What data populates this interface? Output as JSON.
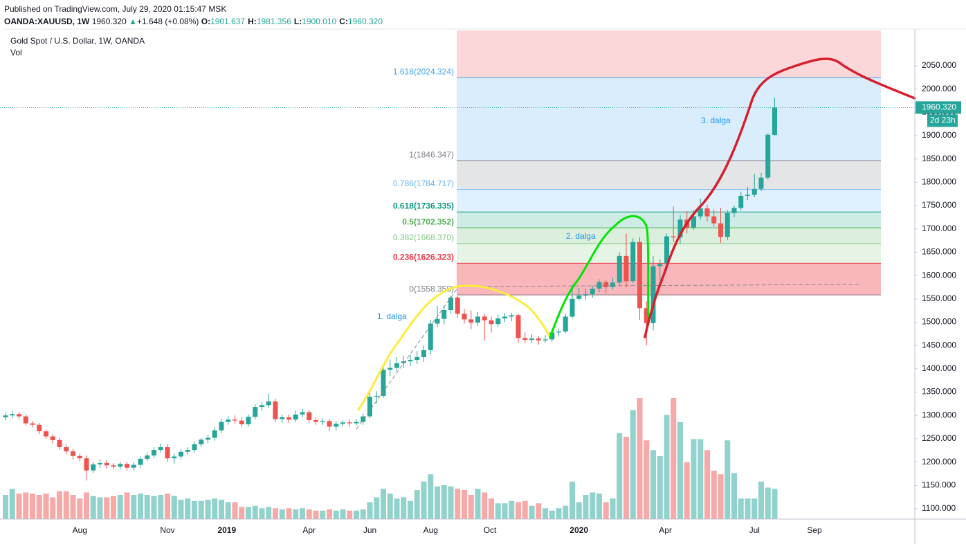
{
  "header": {
    "published": "Published on TradingView.com, July 29, 2020 01:15:47 MSK",
    "symbol": "OANDA:XAUUSD, 1W",
    "last": "1960.320",
    "arrow": "▲",
    "change": "+1.648 (+0.08%)",
    "fields": [
      {
        "k": "O:",
        "v": "1901.637"
      },
      {
        "k": "H:",
        "v": "1981.356"
      },
      {
        "k": "L:",
        "v": "1900.010"
      },
      {
        "k": "C:",
        "v": "1960.320"
      }
    ]
  },
  "chart_data": {
    "type": "candlestick",
    "title": "Gold Spot / U.S. Dollar, 1W, OANDA",
    "volume_label": "Vol",
    "up_color": "#26a69a",
    "down_color": "#ef5350",
    "grid": true,
    "categories": [
      null,
      null,
      null,
      null,
      null,
      null,
      null,
      null,
      null,
      null,
      null,
      null,
      null,
      null,
      null,
      null,
      null,
      null,
      null,
      null,
      null,
      null,
      null,
      null,
      null,
      null,
      null,
      null,
      null,
      null,
      null,
      null,
      null,
      null,
      null,
      null,
      null,
      null,
      null,
      null,
      null,
      null,
      null,
      null,
      null,
      null,
      null,
      null,
      null,
      null,
      null,
      null,
      null,
      null,
      null,
      null,
      null,
      null,
      null,
      null,
      null,
      null,
      null,
      null,
      null,
      null,
      null,
      null,
      null,
      null,
      null,
      null,
      null,
      null,
      null,
      null,
      null,
      null,
      null,
      null,
      null,
      null,
      null,
      null,
      null,
      null,
      null,
      null,
      null,
      null,
      null,
      null,
      null,
      null,
      null,
      null,
      null,
      null,
      null,
      null,
      null,
      null,
      null,
      null,
      null,
      null,
      null,
      null,
      null,
      null,
      null,
      null,
      null,
      null,
      null
    ],
    "ohlc": [
      [
        1296,
        1306,
        1290,
        1300
      ],
      [
        1300,
        1310,
        1294,
        1303
      ],
      [
        1303,
        1308,
        1292,
        1298
      ],
      [
        1298,
        1302,
        1278,
        1283
      ],
      [
        1283,
        1288,
        1274,
        1280
      ],
      [
        1280,
        1284,
        1260,
        1266
      ],
      [
        1266,
        1270,
        1250,
        1255
      ],
      [
        1255,
        1260,
        1240,
        1247
      ],
      [
        1247,
        1252,
        1226,
        1232
      ],
      [
        1232,
        1238,
        1216,
        1223
      ],
      [
        1223,
        1228,
        1206,
        1213
      ],
      [
        1213,
        1218,
        1202,
        1208
      ],
      [
        1208,
        1214,
        1160,
        1182
      ],
      [
        1182,
        1200,
        1176,
        1195
      ],
      [
        1195,
        1206,
        1188,
        1198
      ],
      [
        1198,
        1204,
        1186,
        1193
      ],
      [
        1193,
        1198,
        1184,
        1190
      ],
      [
        1190,
        1200,
        1184,
        1196
      ],
      [
        1196,
        1200,
        1182,
        1188
      ],
      [
        1188,
        1200,
        1182,
        1194
      ],
      [
        1194,
        1212,
        1188,
        1207
      ],
      [
        1207,
        1220,
        1202,
        1214
      ],
      [
        1214,
        1232,
        1208,
        1226
      ],
      [
        1226,
        1240,
        1220,
        1232
      ],
      [
        1232,
        1238,
        1200,
        1208
      ],
      [
        1208,
        1218,
        1196,
        1212
      ],
      [
        1212,
        1228,
        1206,
        1222
      ],
      [
        1222,
        1232,
        1216,
        1226
      ],
      [
        1226,
        1244,
        1220,
        1238
      ],
      [
        1238,
        1252,
        1232,
        1248
      ],
      [
        1248,
        1258,
        1240,
        1252
      ],
      [
        1252,
        1274,
        1246,
        1268
      ],
      [
        1268,
        1292,
        1262,
        1286
      ],
      [
        1286,
        1298,
        1280,
        1291
      ],
      [
        1291,
        1300,
        1282,
        1289
      ],
      [
        1289,
        1296,
        1276,
        1281
      ],
      [
        1281,
        1302,
        1276,
        1297
      ],
      [
        1297,
        1324,
        1292,
        1318
      ],
      [
        1318,
        1328,
        1310,
        1322
      ],
      [
        1322,
        1347,
        1316,
        1330
      ],
      [
        1330,
        1336,
        1286,
        1292
      ],
      [
        1292,
        1302,
        1284,
        1296
      ],
      [
        1296,
        1302,
        1284,
        1291
      ],
      [
        1291,
        1310,
        1286,
        1302
      ],
      [
        1302,
        1314,
        1296,
        1307
      ],
      [
        1307,
        1312,
        1284,
        1290
      ],
      [
        1290,
        1296,
        1280,
        1286
      ],
      [
        1286,
        1294,
        1280,
        1288
      ],
      [
        1288,
        1292,
        1266,
        1276
      ],
      [
        1276,
        1288,
        1268,
        1282
      ],
      [
        1282,
        1290,
        1276,
        1285
      ],
      [
        1285,
        1292,
        1276,
        1283
      ],
      [
        1283,
        1292,
        1278,
        1286
      ],
      [
        1286,
        1304,
        1280,
        1298
      ],
      [
        1298,
        1348,
        1294,
        1340
      ],
      [
        1340,
        1352,
        1326,
        1342
      ],
      [
        1342,
        1410,
        1338,
        1398
      ],
      [
        1398,
        1420,
        1384,
        1402
      ],
      [
        1402,
        1425,
        1395,
        1412
      ],
      [
        1412,
        1428,
        1402,
        1416
      ],
      [
        1416,
        1430,
        1406,
        1419
      ],
      [
        1419,
        1438,
        1410,
        1425
      ],
      [
        1425,
        1450,
        1415,
        1440
      ],
      [
        1440,
        1505,
        1432,
        1497
      ],
      [
        1497,
        1535,
        1490,
        1507
      ],
      [
        1507,
        1535,
        1495,
        1526
      ],
      [
        1526,
        1557,
        1518,
        1553
      ],
      [
        1553,
        1556,
        1510,
        1518
      ],
      [
        1518,
        1528,
        1497,
        1506
      ],
      [
        1506,
        1525,
        1485,
        1499
      ],
      [
        1499,
        1522,
        1492,
        1512
      ],
      [
        1512,
        1518,
        1460,
        1504
      ],
      [
        1504,
        1512,
        1478,
        1496
      ],
      [
        1496,
        1516,
        1490,
        1508
      ],
      [
        1508,
        1520,
        1500,
        1512
      ],
      [
        1512,
        1520,
        1502,
        1515
      ],
      [
        1515,
        1518,
        1456,
        1466
      ],
      [
        1466,
        1478,
        1455,
        1462
      ],
      [
        1462,
        1474,
        1456,
        1465
      ],
      [
        1465,
        1470,
        1452,
        1461
      ],
      [
        1461,
        1472,
        1456,
        1463
      ],
      [
        1463,
        1484,
        1458,
        1478
      ],
      [
        1478,
        1486,
        1470,
        1480
      ],
      [
        1480,
        1518,
        1476,
        1512
      ],
      [
        1512,
        1580,
        1508,
        1550
      ],
      [
        1550,
        1574,
        1546,
        1557
      ],
      [
        1557,
        1572,
        1548,
        1560
      ],
      [
        1560,
        1578,
        1552,
        1572
      ],
      [
        1572,
        1592,
        1564,
        1586
      ],
      [
        1586,
        1590,
        1562,
        1575
      ],
      [
        1575,
        1595,
        1570,
        1585
      ],
      [
        1585,
        1650,
        1580,
        1642
      ],
      [
        1642,
        1690,
        1575,
        1588
      ],
      [
        1588,
        1680,
        1584,
        1672
      ],
      [
        1672,
        1682,
        1505,
        1530
      ],
      [
        1530,
        1545,
        1451,
        1498
      ],
      [
        1498,
        1642,
        1482,
        1620
      ],
      [
        1620,
        1635,
        1590,
        1625
      ],
      [
        1625,
        1690,
        1610,
        1684
      ],
      [
        1684,
        1748,
        1672,
        1682
      ],
      [
        1682,
        1730,
        1668,
        1720
      ],
      [
        1720,
        1738,
        1690,
        1703
      ],
      [
        1703,
        1740,
        1698,
        1727
      ],
      [
        1727,
        1765,
        1720,
        1744
      ],
      [
        1744,
        1752,
        1716,
        1727
      ],
      [
        1727,
        1742,
        1705,
        1712
      ],
      [
        1712,
        1745,
        1670,
        1683
      ],
      [
        1683,
        1740,
        1676,
        1734
      ],
      [
        1734,
        1750,
        1725,
        1745
      ],
      [
        1745,
        1780,
        1740,
        1771
      ],
      [
        1771,
        1790,
        1762,
        1773
      ],
      [
        1773,
        1818,
        1768,
        1786
      ],
      [
        1786,
        1820,
        1781,
        1810
      ],
      [
        1810,
        1905,
        1806,
        1902
      ],
      [
        1901.637,
        1981.356,
        1900.01,
        1960.32
      ]
    ],
    "volume": [
      20,
      25,
      21,
      22,
      21,
      20,
      21,
      18,
      23,
      23,
      20,
      17,
      22,
      19,
      18,
      18,
      19,
      20,
      22,
      20,
      21,
      20,
      19,
      20,
      21,
      19,
      16,
      17,
      15,
      15,
      16,
      17,
      16,
      14,
      14,
      10,
      10,
      11,
      9,
      10,
      9,
      8,
      9,
      8,
      9,
      8,
      7,
      7,
      8,
      7,
      8,
      7,
      7,
      8,
      14,
      18,
      25,
      21,
      17,
      18,
      15,
      24,
      31,
      37,
      27,
      28,
      27,
      25,
      24,
      20,
      25,
      22,
      17,
      13,
      13,
      15,
      14,
      15,
      11,
      13,
      9,
      7,
      9,
      11,
      31,
      14,
      20,
      22,
      21,
      14,
      17,
      71,
      68,
      90,
      100,
      65,
      57,
      52,
      86,
      100,
      80,
      47,
      66,
      66,
      57,
      40,
      37,
      65,
      38,
      17,
      17,
      17,
      31,
      26,
      25
    ],
    "ylim": [
      1077.7,
      2128.6
    ],
    "yticks": [
      {
        "value": 1100,
        "label": "1100.000"
      },
      {
        "value": 1150,
        "label": "1150.000"
      },
      {
        "value": 1200,
        "label": "1200.000"
      },
      {
        "value": 1250,
        "label": "1250.000"
      },
      {
        "value": 1300,
        "label": "1300.000"
      },
      {
        "value": 1350,
        "label": "1350.000"
      },
      {
        "value": 1400,
        "label": "1400.000"
      },
      {
        "value": 1450,
        "label": "1450.000"
      },
      {
        "value": 1500,
        "label": "1500.000"
      },
      {
        "value": 1550,
        "label": "1550.000"
      },
      {
        "value": 1600,
        "label": "1600.000"
      },
      {
        "value": 1650,
        "label": "1650.000"
      },
      {
        "value": 1700,
        "label": "1700.000"
      },
      {
        "value": 1750,
        "label": "1750.000"
      },
      {
        "value": 1800,
        "label": "1800.000"
      },
      {
        "value": 1850,
        "label": "1850.000"
      },
      {
        "value": 1900,
        "label": "1900.000"
      },
      {
        "value": 1950,
        "label": "1950.000"
      },
      {
        "value": 2000,
        "label": "2000.000"
      },
      {
        "value": 2050,
        "label": "2050.000"
      }
    ],
    "xticks": [
      {
        "value": 11,
        "label": "Aug"
      },
      {
        "value": 24,
        "label": "Nov"
      },
      {
        "value": 32.8,
        "label": "2019"
      },
      {
        "value": 45,
        "label": "Apr"
      },
      {
        "value": 54,
        "label": "Jun"
      },
      {
        "value": 63,
        "label": "Aug"
      },
      {
        "value": 71.8,
        "label": "Oct"
      },
      {
        "value": 85,
        "label": "2020"
      },
      {
        "value": 97.8,
        "label": "Apr"
      },
      {
        "value": 111,
        "label": "Jul"
      },
      {
        "value": 119.9,
        "label": "Sep"
      }
    ],
    "last_price": {
      "value": 1960.32,
      "label": "1960.320",
      "countdown": "2d 23h"
    },
    "fib_levels": [
      {
        "label": "1.618(2024.324)",
        "value": 2024.324,
        "color": "#42a5f5"
      },
      {
        "label": "1(1846.347)",
        "value": 1846.347,
        "color": "#787b86"
      },
      {
        "label": "0.786(1784.717)",
        "value": 1784.717,
        "color": "#64b5f6"
      },
      {
        "label": "0.618(1736.335)",
        "value": 1736.335,
        "color": "#089981"
      },
      {
        "label": "0.5(1702.352)",
        "value": 1702.352,
        "color": "#4caf50"
      },
      {
        "label": "0.382(1668.370)",
        "value": 1668.37,
        "color": "#81c784"
      },
      {
        "label": "0.236(1626.323)",
        "value": 1626.323,
        "color": "#f23645"
      },
      {
        "label": "0(1558.358)",
        "value": 1558.358,
        "color": "#787b86"
      }
    ],
    "annotations": [
      {
        "text": "1. dalga"
      },
      {
        "text": "2. dalga"
      },
      {
        "text": "3. dalga"
      }
    ]
  }
}
